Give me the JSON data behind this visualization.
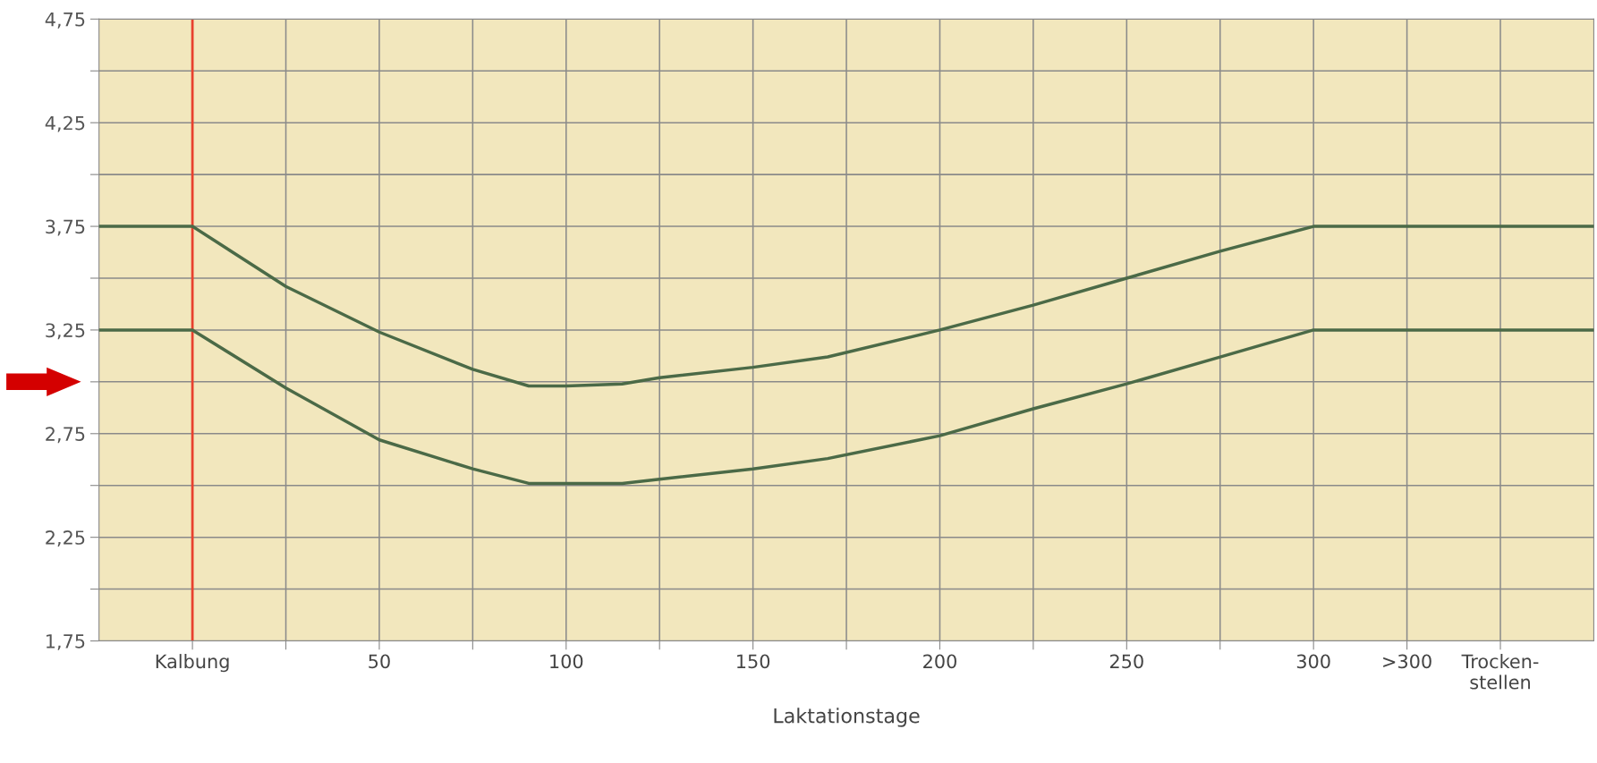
{
  "chart_data": {
    "type": "line",
    "xlabel": "Laktationstage",
    "x": [
      -25,
      0,
      25,
      50,
      75,
      90,
      100,
      115,
      125,
      150,
      170,
      200,
      225,
      250,
      275,
      300,
      325,
      350,
      375
    ],
    "series": [
      {
        "color": "#4b6a47",
        "values": [
          3.75,
          3.75,
          3.46,
          3.24,
          3.06,
          2.98,
          2.98,
          2.99,
          3.02,
          3.07,
          3.12,
          3.25,
          3.37,
          3.5,
          3.63,
          3.75,
          3.75,
          3.75,
          3.75
        ]
      },
      {
        "color": "#4b6a47",
        "values": [
          3.25,
          3.25,
          2.97,
          2.72,
          2.58,
          2.51,
          2.51,
          2.51,
          2.53,
          2.58,
          2.63,
          2.74,
          2.87,
          2.99,
          3.12,
          3.25,
          3.25,
          3.25,
          3.25
        ]
      }
    ],
    "xlim": [
      -25,
      375
    ],
    "xticks": [
      {
        "value": 0,
        "label": "Kalbung"
      },
      {
        "value": 25,
        "label": null
      },
      50,
      {
        "value": 75,
        "label": null
      },
      100,
      {
        "value": 125,
        "label": null
      },
      150,
      {
        "value": 175,
        "label": null
      },
      200,
      {
        "value": 225,
        "label": null
      },
      250,
      {
        "value": 275,
        "label": null
      },
      300,
      {
        "value": 325,
        "label": ">300"
      },
      {
        "value": 350,
        "label": "Trocken-\nstellen"
      }
    ],
    "ylim": [
      1.75,
      4.75
    ],
    "yticks": [
      {
        "value": 1.75,
        "label": "1,75"
      },
      {
        "value": 2.0,
        "label": null
      },
      {
        "value": 2.25,
        "label": "2,25"
      },
      {
        "value": 2.5,
        "label": null
      },
      {
        "value": 2.75,
        "label": "2,75"
      },
      {
        "value": 3.0,
        "label": null
      },
      {
        "value": 3.25,
        "label": "3,25"
      },
      {
        "value": 3.5,
        "label": null
      },
      {
        "value": 3.75,
        "label": "3,75"
      },
      {
        "value": 4.0,
        "label": null
      },
      {
        "value": 4.25,
        "label": "4,25"
      },
      {
        "value": 4.5,
        "label": null
      },
      {
        "value": 4.75,
        "label": "4,75"
      }
    ],
    "ref_lines": [
      {
        "axis": "x",
        "value": 0,
        "color": "#e8412f"
      }
    ],
    "grid": true,
    "marker": "none",
    "line_style": "solid",
    "legend": false
  }
}
